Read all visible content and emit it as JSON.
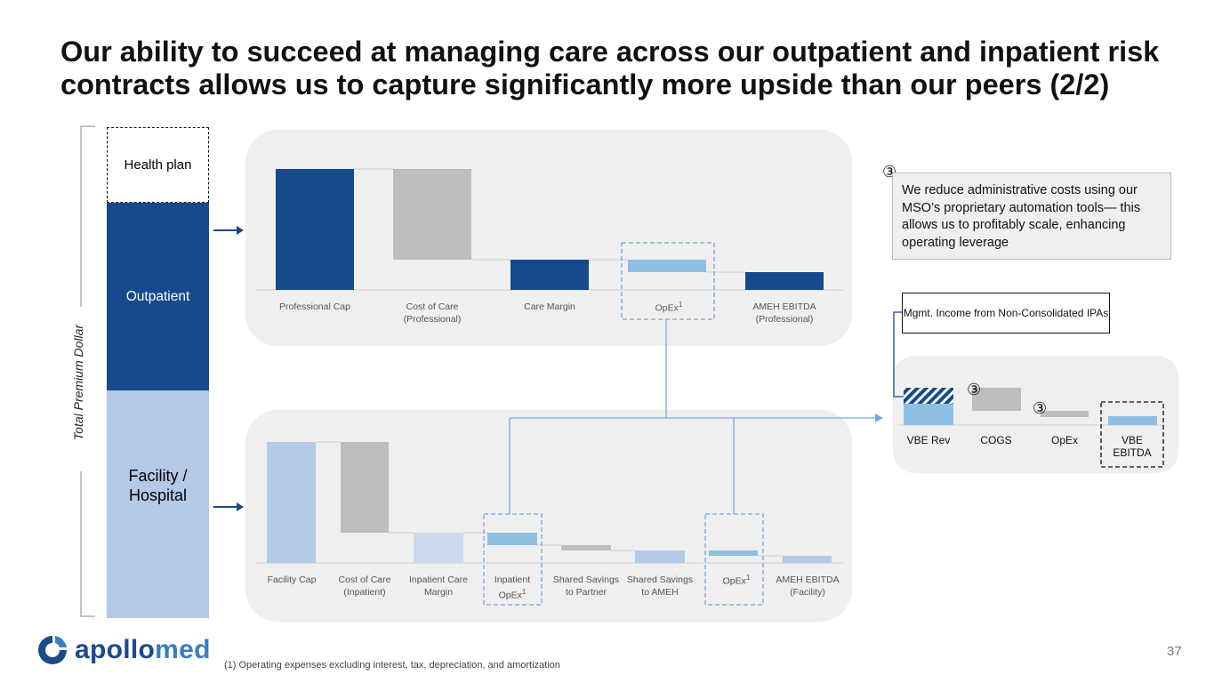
{
  "title": "Our ability to succeed at managing care across our outpatient and inpatient risk contracts allows us to capture significantly more upside than our peers (2/2)",
  "stack": {
    "axis_label": "Total Premium Dollar",
    "health_plan": "Health plan",
    "outpatient": "Outpatient",
    "facility": "Facility / Hospital"
  },
  "professional_chart": {
    "labels": {
      "professional_cap": "Professional Cap",
      "cost_of_care_line1": "Cost of Care",
      "cost_of_care_line2": "(Professional)",
      "care_margin": "Care Margin",
      "opex": "OpEx",
      "opex_sup": "1",
      "ebitda_line1": "AMEH EBITDA",
      "ebitda_line2": "(Professional)"
    }
  },
  "facility_chart": {
    "labels": {
      "facility_cap": "Facility Cap",
      "cost_of_care_line1": "Cost of Care",
      "cost_of_care_line2": "(Inpatient)",
      "care_margin_line1": "Inpatient Care",
      "care_margin_line2": "Margin",
      "inpatient_opex_line1": "Inpatient",
      "inpatient_opex_line2": "OpEx",
      "inpatient_opex_sup": "1",
      "savings_partner_line1": "Shared Savings",
      "savings_partner_line2": "to Partner",
      "savings_ameh_line1": "Shared Savings",
      "savings_ameh_line2": "to AMEH",
      "opex": "OpEx",
      "opex_sup": "1",
      "ebitda_line1": "AMEH EBITDA",
      "ebitda_line2": "(Facility)"
    }
  },
  "callout": {
    "badge": "③",
    "text": "We reduce administrative costs using our MSO’s proprietary automation tools— this allows us to profitably scale, enhancing operating leverage"
  },
  "vbe_chart": {
    "mgmt_income": "Mgmt. Income from Non-Consolidated IPAs",
    "badge_cogs": "③",
    "badge_opex": "③",
    "labels": {
      "vbe_rev": "VBE Rev",
      "cogs": "COGS",
      "opex": "OpEx",
      "vbe_ebitda_line1": "VBE",
      "vbe_ebitda_line2": "EBITDA"
    }
  },
  "logo": {
    "brand": "apollo",
    "brand_accent": "med"
  },
  "footnote": "(1) Operating expenses excluding interest, tax, depreciation, and amortization",
  "page_number": "37",
  "colors": {
    "dark_blue": "#164a8c",
    "light_blue": "#b4c8e8",
    "sky_blue": "#8ec0e2",
    "gray": "#bdbdbd",
    "panel": "#efefef"
  }
}
